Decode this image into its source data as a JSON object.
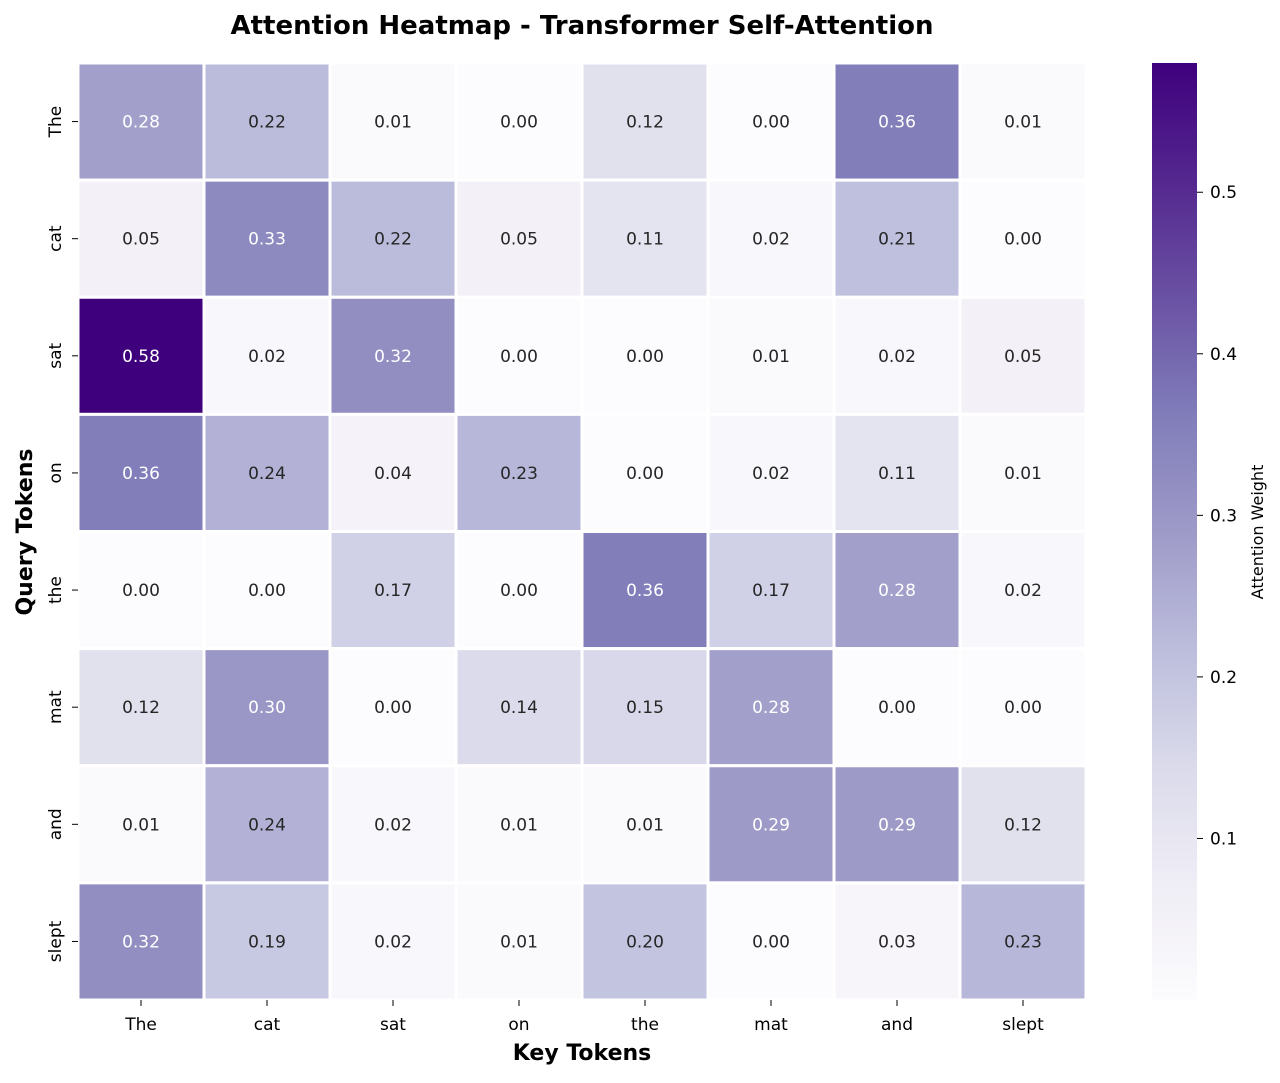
{
  "chart_data": {
    "type": "heatmap",
    "title": "Attention Heatmap - Transformer Self-Attention",
    "xlabel": "Key Tokens",
    "ylabel": "Query Tokens",
    "x_categories": [
      "The",
      "cat",
      "sat",
      "on",
      "the",
      "mat",
      "and",
      "slept"
    ],
    "y_categories": [
      "The",
      "cat",
      "sat",
      "on",
      "the",
      "mat",
      "and",
      "slept"
    ],
    "values": [
      [
        0.28,
        0.22,
        0.01,
        0.0,
        0.12,
        0.0,
        0.36,
        0.01
      ],
      [
        0.05,
        0.33,
        0.22,
        0.05,
        0.11,
        0.02,
        0.21,
        0.0
      ],
      [
        0.58,
        0.02,
        0.32,
        0.0,
        0.0,
        0.01,
        0.02,
        0.05
      ],
      [
        0.36,
        0.24,
        0.04,
        0.23,
        0.0,
        0.02,
        0.11,
        0.01
      ],
      [
        0.0,
        0.0,
        0.17,
        0.0,
        0.36,
        0.17,
        0.28,
        0.02
      ],
      [
        0.12,
        0.3,
        0.0,
        0.14,
        0.15,
        0.28,
        0.0,
        0.0
      ],
      [
        0.01,
        0.24,
        0.02,
        0.01,
        0.01,
        0.29,
        0.29,
        0.12
      ],
      [
        0.32,
        0.19,
        0.02,
        0.01,
        0.2,
        0.0,
        0.03,
        0.23
      ]
    ],
    "colormap": "Purples",
    "colorbar": {
      "label": "Attention Weight",
      "range": [
        0.0,
        0.58
      ],
      "ticks": [
        0.1,
        0.2,
        0.3,
        0.4,
        0.5
      ],
      "tick_labels": [
        "0.1",
        "0.2",
        "0.3",
        "0.4",
        "0.5"
      ]
    },
    "annotations": true,
    "grid": false,
    "cell_border_color": "#ffffff"
  }
}
